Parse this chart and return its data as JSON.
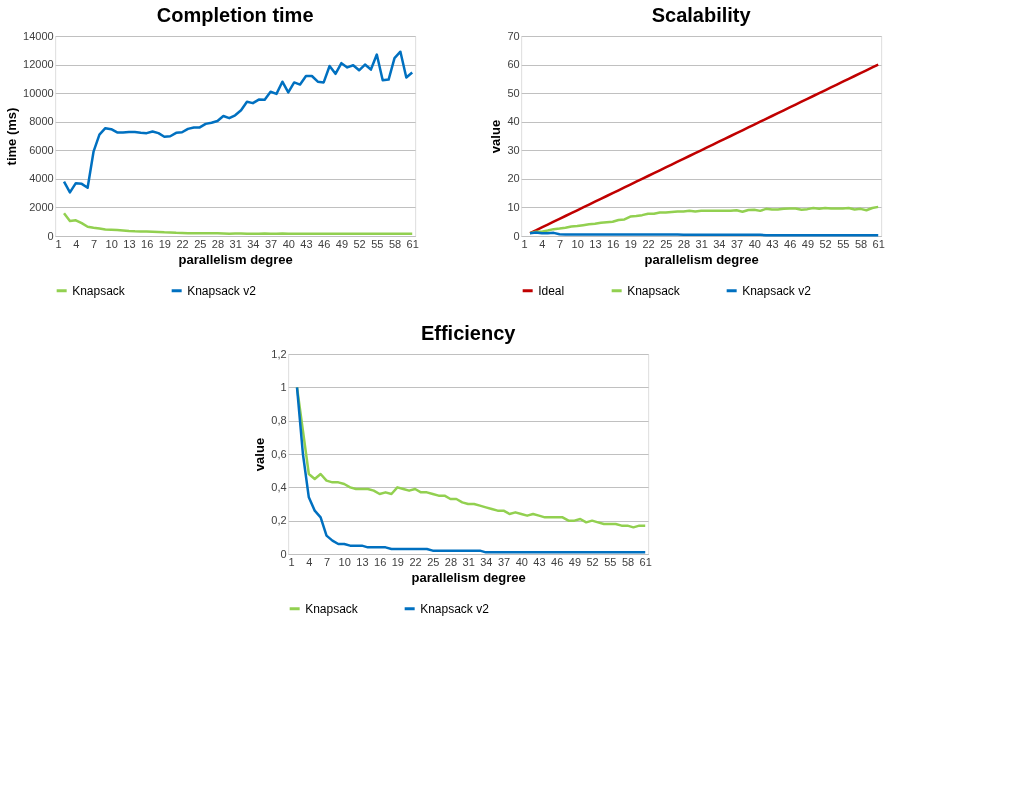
{
  "chart_data": [
    {
      "type": "line",
      "title": "Completion time",
      "xlabel": "parallelism degree",
      "ylabel": "time (ms)",
      "grid": "y",
      "legend": "bottom",
      "categories": [
        "1",
        null,
        null,
        "4",
        null,
        null,
        "7",
        null,
        null,
        "10",
        null,
        null,
        "13",
        null,
        null,
        "16",
        null,
        null,
        "19",
        null,
        null,
        "22",
        null,
        null,
        "25",
        null,
        null,
        "28",
        null,
        null,
        "31",
        null,
        null,
        "34",
        null,
        null,
        "37",
        null,
        null,
        "40",
        null,
        null,
        "43",
        null,
        null,
        "46",
        null,
        null,
        "49",
        null,
        null,
        "52",
        null,
        null,
        "55",
        null,
        null,
        "58",
        null,
        null,
        "61"
      ],
      "ylim": [
        0,
        14000
      ],
      "yticks": [
        0,
        2000,
        4000,
        6000,
        8000,
        10000,
        12000,
        14000
      ],
      "series": [
        {
          "name": "Knapsack",
          "color": "#92d050",
          "values": [
            null,
            1600,
            1050,
            1100,
            900,
            650,
            580,
            520,
            450,
            440,
            420,
            390,
            350,
            330,
            320,
            320,
            300,
            280,
            260,
            250,
            220,
            210,
            200,
            200,
            200,
            200,
            200,
            200,
            180,
            150,
            180,
            180,
            150,
            150,
            150,
            180,
            150,
            150,
            180,
            150,
            150,
            150,
            150,
            150,
            150,
            150,
            150,
            150,
            150,
            150,
            150,
            150,
            150,
            150,
            150,
            150,
            150,
            150,
            150,
            150,
            150
          ]
        },
        {
          "name": "Knapsack v2",
          "color": "#0070c0",
          "values": [
            null,
            3800,
            3050,
            3700,
            3650,
            3380,
            5900,
            7100,
            7550,
            7480,
            7250,
            7250,
            7280,
            7280,
            7230,
            7200,
            7320,
            7200,
            6950,
            6980,
            7220,
            7260,
            7500,
            7600,
            7600,
            7850,
            7930,
            8050,
            8400,
            8250,
            8450,
            8800,
            9400,
            9300,
            9550,
            9540,
            10100,
            9950,
            10800,
            10050,
            10750,
            10600,
            11200,
            11200,
            10800,
            10750,
            11900,
            11350,
            12100,
            11800,
            11950,
            11600,
            12000,
            11650,
            12700,
            10900,
            10950,
            12450,
            12900,
            11100,
            11450
          ]
        }
      ]
    },
    {
      "type": "line",
      "title": "Scalability",
      "xlabel": "parallelism degree",
      "ylabel": "value",
      "grid": "y",
      "legend": "bottom",
      "categories": [
        "1",
        null,
        null,
        "4",
        null,
        null,
        "7",
        null,
        null,
        "10",
        null,
        null,
        "13",
        null,
        null,
        "16",
        null,
        null,
        "19",
        null,
        null,
        "22",
        null,
        null,
        "25",
        null,
        null,
        "28",
        null,
        null,
        "31",
        null,
        null,
        "34",
        null,
        null,
        "37",
        null,
        null,
        "40",
        null,
        null,
        "43",
        null,
        null,
        "46",
        null,
        null,
        "49",
        null,
        null,
        "52",
        null,
        null,
        "55",
        null,
        null,
        "58",
        null,
        null,
        "61"
      ],
      "ylim": [
        0,
        70
      ],
      "yticks": [
        0,
        10,
        20,
        30,
        40,
        50,
        60,
        70
      ],
      "series": [
        {
          "name": "Ideal",
          "color": "#c00000",
          "values": [
            null,
            1,
            2,
            3,
            4,
            5,
            6,
            7,
            8,
            9,
            10,
            11,
            12,
            13,
            14,
            15,
            16,
            17,
            18,
            19,
            20,
            21,
            22,
            23,
            24,
            25,
            26,
            27,
            28,
            29,
            30,
            31,
            32,
            33,
            34,
            35,
            36,
            37,
            38,
            39,
            40,
            41,
            42,
            43,
            44,
            45,
            46,
            47,
            48,
            49,
            50,
            51,
            52,
            53,
            54,
            55,
            56,
            57,
            58,
            59,
            60
          ]
        },
        {
          "name": "Knapsack",
          "color": "#92d050",
          "values": [
            null,
            1,
            1.5,
            1.5,
            1.9,
            2.4,
            2.6,
            2.9,
            3.3,
            3.5,
            3.8,
            4.1,
            4.3,
            4.6,
            4.8,
            5.0,
            5.6,
            5.8,
            6.8,
            7.0,
            7.3,
            7.8,
            7.8,
            8.2,
            8.2,
            8.4,
            8.6,
            8.6,
            8.8,
            8.6,
            8.8,
            8.8,
            8.8,
            8.8,
            8.8,
            8.8,
            9.0,
            8.5,
            9.1,
            9.2,
            8.8,
            9.5,
            9.3,
            9.3,
            9.5,
            9.6,
            9.6,
            9.2,
            9.4,
            9.8,
            9.5,
            9.8,
            9.6,
            9.6,
            9.6,
            9.8,
            9.3,
            9.5,
            9.0,
            9.8,
            10.2
          ]
        },
        {
          "name": "Knapsack v2",
          "color": "#0070c0",
          "values": [
            null,
            1,
            1.2,
            1.0,
            1.0,
            1.1,
            0.6,
            0.5,
            0.5,
            0.5,
            0.5,
            0.5,
            0.5,
            0.5,
            0.5,
            0.5,
            0.5,
            0.5,
            0.5,
            0.5,
            0.5,
            0.5,
            0.5,
            0.5,
            0.5,
            0.5,
            0.5,
            0.4,
            0.4,
            0.4,
            0.4,
            0.4,
            0.4,
            0.4,
            0.4,
            0.4,
            0.4,
            0.4,
            0.4,
            0.4,
            0.4,
            0.3,
            0.3,
            0.3,
            0.3,
            0.3,
            0.3,
            0.3,
            0.3,
            0.3,
            0.3,
            0.3,
            0.3,
            0.3,
            0.3,
            0.3,
            0.3,
            0.3,
            0.3,
            0.3,
            0.3
          ]
        }
      ]
    },
    {
      "type": "line",
      "title": "Efficiency",
      "xlabel": "parallelism degree",
      "ylabel": "value",
      "grid": "y",
      "legend": "bottom",
      "categories": [
        "1",
        null,
        null,
        "4",
        null,
        null,
        "7",
        null,
        null,
        "10",
        null,
        null,
        "13",
        null,
        null,
        "16",
        null,
        null,
        "19",
        null,
        null,
        "22",
        null,
        null,
        "25",
        null,
        null,
        "28",
        null,
        null,
        "31",
        null,
        null,
        "34",
        null,
        null,
        "37",
        null,
        null,
        "40",
        null,
        null,
        "43",
        null,
        null,
        "46",
        null,
        null,
        "49",
        null,
        null,
        "52",
        null,
        null,
        "55",
        null,
        null,
        "58",
        null,
        null,
        "61"
      ],
      "ylim": [
        0,
        1.2
      ],
      "yticks": [
        0,
        {
          "value": 0.2,
          "label": "0,2"
        },
        {
          "value": 0.4,
          "label": "0,4"
        },
        {
          "value": 0.6,
          "label": "0,6"
        },
        {
          "value": 0.8,
          "label": "0,8"
        },
        1,
        {
          "value": 1.2,
          "label": "1,2"
        }
      ],
      "series": [
        {
          "name": "Knapsack",
          "color": "#92d050",
          "values": [
            null,
            1,
            0.74,
            0.48,
            0.45,
            0.48,
            0.44,
            0.43,
            0.43,
            0.42,
            0.4,
            0.39,
            0.39,
            0.39,
            0.38,
            0.36,
            0.37,
            0.36,
            0.4,
            0.39,
            0.38,
            0.39,
            0.37,
            0.37,
            0.36,
            0.35,
            0.35,
            0.33,
            0.33,
            0.31,
            0.3,
            0.3,
            0.29,
            0.28,
            0.27,
            0.26,
            0.26,
            0.24,
            0.25,
            0.24,
            0.23,
            0.24,
            0.23,
            0.22,
            0.22,
            0.22,
            0.22,
            0.2,
            0.2,
            0.21,
            0.19,
            0.2,
            0.19,
            0.18,
            0.18,
            0.18,
            0.17,
            0.17,
            0.16,
            0.17,
            0.17
          ]
        },
        {
          "name": "Knapsack v2",
          "color": "#0070c0",
          "values": [
            null,
            1,
            0.6,
            0.34,
            0.26,
            0.22,
            0.11,
            0.08,
            0.06,
            0.06,
            0.05,
            0.05,
            0.05,
            0.04,
            0.04,
            0.04,
            0.04,
            0.03,
            0.03,
            0.03,
            0.03,
            0.03,
            0.03,
            0.03,
            0.02,
            0.02,
            0.02,
            0.02,
            0.02,
            0.02,
            0.02,
            0.02,
            0.02,
            0.01,
            0.01,
            0.01,
            0.01,
            0.01,
            0.01,
            0.01,
            0.01,
            0.01,
            0.01,
            0.01,
            0.01,
            0.01,
            0.01,
            0.01,
            0.01,
            0.01,
            0.01,
            0.01,
            0.01,
            0.01,
            0.01,
            0.01,
            0.01,
            0.01,
            0.01,
            0.01,
            0.01
          ]
        }
      ]
    }
  ]
}
